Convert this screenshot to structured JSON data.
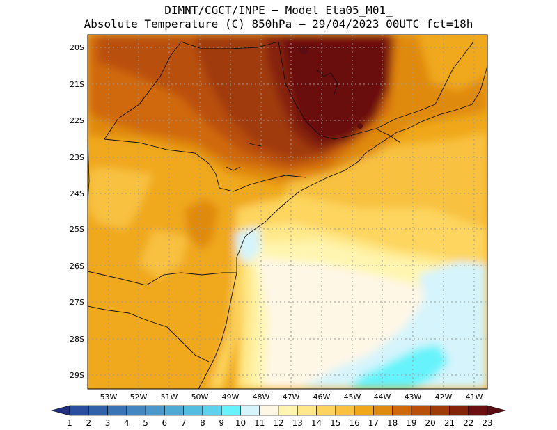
{
  "title": {
    "line1": "DIMNT/CGCT/INPE –  Model Eta05_M01_",
    "line2": "Absolute Temperature (C) 850hPa –  29/04/2023 00UTC fct=18h"
  },
  "map": {
    "lat_labels": [
      "20S",
      "21S",
      "22S",
      "23S",
      "24S",
      "25S",
      "26S",
      "27S",
      "28S",
      "29S"
    ],
    "lon_labels": [
      "53W",
      "52W",
      "51W",
      "50W",
      "49W",
      "48W",
      "47W",
      "46W",
      "45W",
      "44W",
      "43W",
      "42W",
      "41W"
    ]
  },
  "colorbar": {
    "labels": [
      "1",
      "2",
      "3",
      "4",
      "5",
      "6",
      "7",
      "8",
      "9",
      "10",
      "11",
      "12",
      "13",
      "14",
      "15",
      "16",
      "17",
      "18",
      "19",
      "20",
      "21",
      "22",
      "23"
    ],
    "colors": [
      "#20307e",
      "#2a4f9e",
      "#3462a8",
      "#3b74b4",
      "#4586c0",
      "#4d98cb",
      "#4faad4",
      "#53bedf",
      "#5cd3ea",
      "#66f3fb",
      "#d6f4fb",
      "#fff7e6",
      "#fff5b0",
      "#ffe88a",
      "#fdd55e",
      "#f8c13f",
      "#f0a81a",
      "#e08a10",
      "#d0690a",
      "#b94f08",
      "#a03a08",
      "#85230a",
      "#6b1010",
      "#4d0a18",
      "#5a0e14"
    ]
  }
}
